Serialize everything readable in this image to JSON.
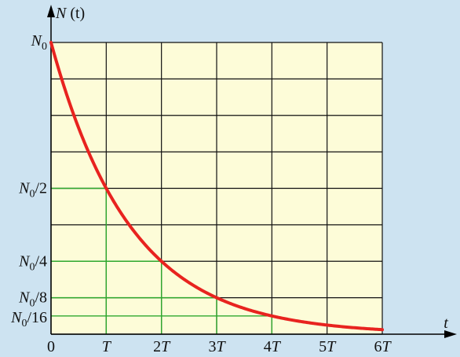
{
  "chart_data": {
    "type": "line",
    "title": "",
    "xlabel": "t",
    "ylabel": "N (t)",
    "grid": true,
    "xlim": [
      0,
      6
    ],
    "ylim": [
      0,
      1
    ],
    "x_ticks": [
      {
        "value": 0,
        "label": "0"
      },
      {
        "value": 1,
        "label": "T"
      },
      {
        "value": 2,
        "label": "2T"
      },
      {
        "value": 3,
        "label": "3T"
      },
      {
        "value": 4,
        "label": "4T"
      },
      {
        "value": 5,
        "label": "5T"
      },
      {
        "value": 6,
        "label": "6T"
      }
    ],
    "y_ticks": [
      {
        "value": 1,
        "label": "N0"
      },
      {
        "value": 0.5,
        "label": "N0/2"
      },
      {
        "value": 0.25,
        "label": "N0/4"
      },
      {
        "value": 0.125,
        "label": "N0/8"
      },
      {
        "value": 0.0625,
        "label": "N0/16"
      }
    ],
    "series": [
      {
        "x": [
          0,
          1,
          2,
          3,
          4,
          5,
          6
        ],
        "y": [
          1,
          0.5,
          0.25,
          0.125,
          0.0625,
          0.03125,
          0.015625
        ],
        "color": "#e8231f"
      }
    ],
    "guide_color": "#2ea82e",
    "grid_color": "#111111",
    "plot_background": "#fdfcd8"
  }
}
